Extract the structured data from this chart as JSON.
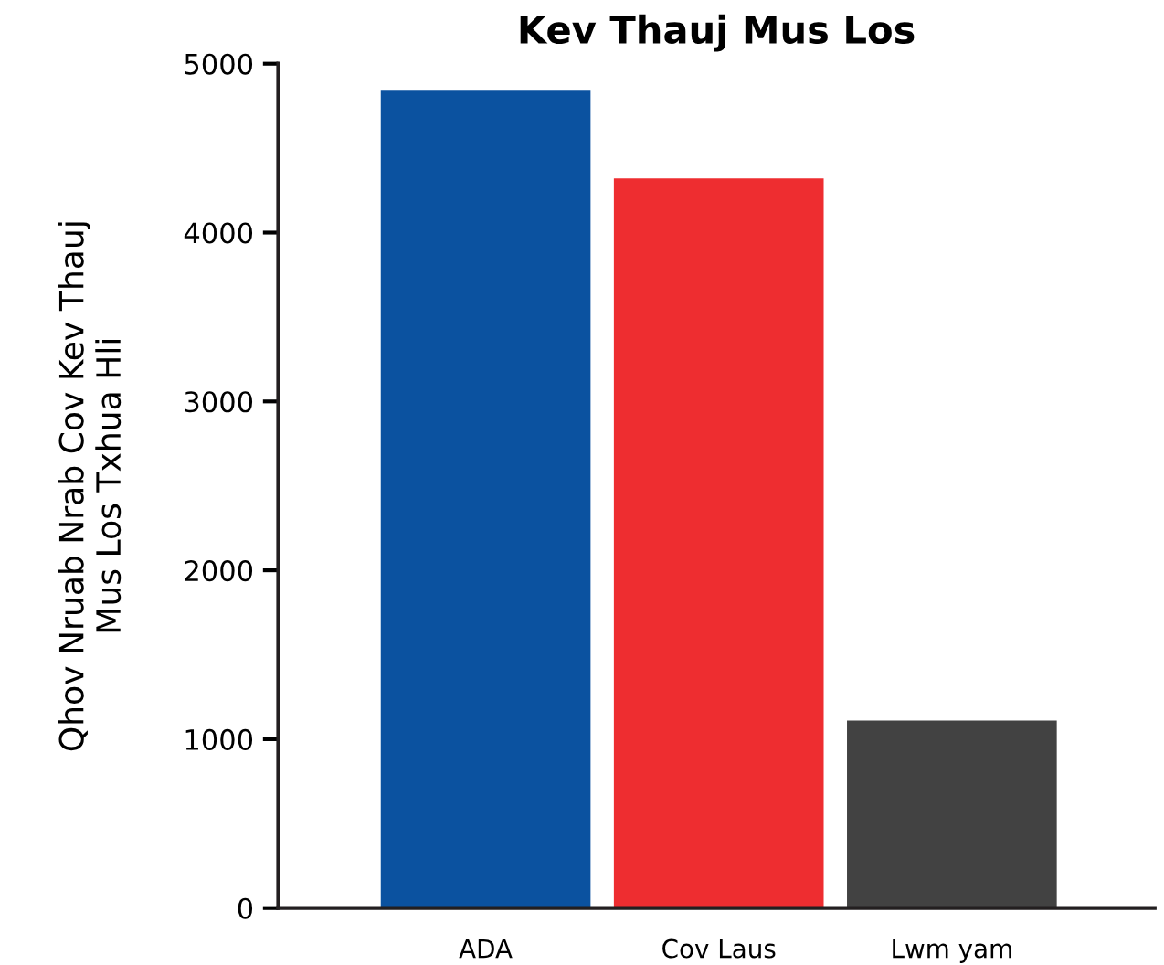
{
  "chart_data": {
    "type": "bar",
    "title": "Kev Thauj Mus Los",
    "ylabel": "Qhov Nruab Nrab Cov Kev Thauj\nMus Los Txhua Hli",
    "categories": [
      "ADA",
      "Cov Laus",
      "Lwm yam"
    ],
    "values": [
      4840,
      4320,
      1110
    ],
    "colors": [
      "#0b52a0",
      "#ee2d30",
      "#424242"
    ],
    "ylim": [
      0,
      5000
    ],
    "yticks": [
      0,
      1000,
      2000,
      3000,
      4000,
      5000
    ],
    "grid": false,
    "legend": false
  }
}
